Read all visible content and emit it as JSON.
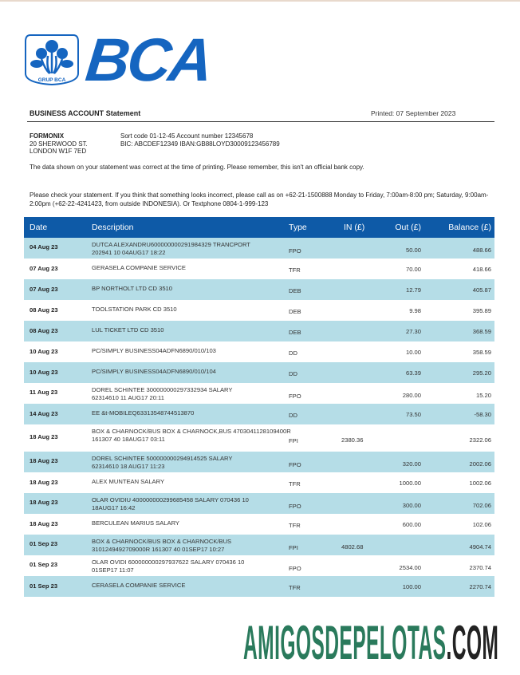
{
  "brand": {
    "name": "BCA",
    "emblem_caption": "GRUP BCA",
    "color": "#1565c0"
  },
  "header": {
    "title_bold": "BUSINESS ACCOUNT",
    "title_rest": "Statement",
    "printed": "Printed: 07 September 2023"
  },
  "customer": {
    "name": "FORMONIX",
    "address1": "20 SHERWOOD ST.",
    "address2": "LONDON W1F 7ED"
  },
  "account": {
    "line1": "Sort code 01-12-45  Account number 12345678",
    "line2": "BIC: ABCDEF12349   IBAN:GB88LOYD30009123456789"
  },
  "notes": {
    "accuracy": "The data shown on your statement was correct at the time of printing. Please remember, this isn't an official bank copy.",
    "check": "Please check your statement. If you think that something looks incorrect, please call as on +62-21-1500888 Monday to Friday, 7:00am-8:00 pm; Saturday, 9:00am-2:00pm (+62-22-4241423, from outside INDONESIA). Or Textphone 0804-1-999-123"
  },
  "table": {
    "header_color": "#0e5aa7",
    "stripe_color": "#b5dde7",
    "columns": [
      "Date",
      "Description",
      "Type",
      "IN (£)",
      "Out (£)",
      "Balance (£)"
    ],
    "rows": [
      {
        "date": "04 Aug 23",
        "desc": [
          "DUTCA ALEXANDRU600000000291984329 TRANCPORT",
          "202941 10 04AUG17 18:22"
        ],
        "type": "FPO",
        "in": "",
        "out": "50.00",
        "balance": "488.66"
      },
      {
        "date": "07 Aug 23",
        "desc": [
          "GERASELA COMPANIE SERVICE"
        ],
        "type": "TFR",
        "in": "",
        "out": "70.00",
        "balance": "418.66"
      },
      {
        "date": "07 Aug 23",
        "desc": [
          "BP NORTHOLT LTD CD 3510"
        ],
        "type": "DEB",
        "in": "",
        "out": "12.79",
        "balance": "405.87"
      },
      {
        "date": "08 Aug 23",
        "desc": [
          "TOOLSTATION PARK CD 3510"
        ],
        "type": "DEB",
        "in": "",
        "out": "9.98",
        "balance": "395.89"
      },
      {
        "date": "08 Aug 23",
        "desc": [
          "LUL TICKET LTD CD 3510"
        ],
        "type": "DEB",
        "in": "",
        "out": "27.30",
        "balance": "368.59"
      },
      {
        "date": "10 Aug 23",
        "desc": [
          "PC/SIMPLY BUSINESS04ADFN6890/010/103"
        ],
        "type": "DD",
        "in": "",
        "out": "10.00",
        "balance": "358.59"
      },
      {
        "date": "10 Aug 23",
        "desc": [
          "PC/SIMPLY BUSINESS04ADFN6890/010/104"
        ],
        "type": "DD",
        "in": "",
        "out": "63.39",
        "balance": "295.20"
      },
      {
        "date": "11 Aug 23",
        "desc": [
          "DOREL SCHINTEE 300000000297332934 SALARY",
          "62314610 11 AUG17 20:11"
        ],
        "type": "FPO",
        "in": "",
        "out": "280.00",
        "balance": "15.20"
      },
      {
        "date": "14 Aug 23",
        "desc": [
          "EE &t-MOBILEQ63313548744513870"
        ],
        "type": "DD",
        "in": "",
        "out": "73.50",
        "balance": "-58.30"
      },
      {
        "date": "18 Aug 23",
        "desc": [
          "BOX & CHARNOCK/BUS BOX & CHARNOCK,BUS 4703041128109400R",
          "161307 40 18AUG17 03:11"
        ],
        "type": "FPI",
        "in": "2380.36",
        "out": "",
        "balance": "2322.06"
      },
      {
        "date": "18 Aug 23",
        "desc": [
          "DOREL SCHINTEE 500000000294914525 SALARY",
          "62314610 18 AUG17 11:23"
        ],
        "type": "FPO",
        "in": "",
        "out": "320.00",
        "balance": "2002.06"
      },
      {
        "date": "18 Aug 23",
        "desc": [
          "ALEX MUNTEAN SALARY"
        ],
        "type": "TFR",
        "in": "",
        "out": "1000.00",
        "balance": "1002.06"
      },
      {
        "date": "18 Aug 23",
        "desc": [
          "OLAR OVIDIU 400000000299685458 SALARY 070436 10",
          "18AUG17 16:42"
        ],
        "type": "FPO",
        "in": "",
        "out": "300.00",
        "balance": "702.06"
      },
      {
        "date": "18 Aug 23",
        "desc": [
          "BERCULEAN MARIUS SALARY"
        ],
        "type": "TFR",
        "in": "",
        "out": "600.00",
        "balance": "102.06"
      },
      {
        "date": "01 Sep 23",
        "desc": [
          "BOX & CHARNOCK/BUS BOX & CHARNOCK/BUS",
          "3101249492709000R 161307 40 01SEP17 10:27"
        ],
        "type": "FPI",
        "in": "4802.68",
        "out": "",
        "balance": "4904.74"
      },
      {
        "date": "01 Sep 23",
        "desc": [
          "OLAR OVIDI 600000000297937622 SALARY 070436 10",
          "01SEP17 11:07"
        ],
        "type": "FPO",
        "in": "",
        "out": "2534.00",
        "balance": "2370.74"
      },
      {
        "date": "01 Sep 23",
        "desc": [
          "CERASELA COMPANIE SERVICE"
        ],
        "type": "TFR",
        "in": "",
        "out": "100.00",
        "balance": "2270.74"
      }
    ]
  },
  "watermark": {
    "main": "AMIGOSDEPELOTAS",
    "suffix": ".COM",
    "main_color": "#2a7a5c",
    "suffix_color": "#222222"
  }
}
